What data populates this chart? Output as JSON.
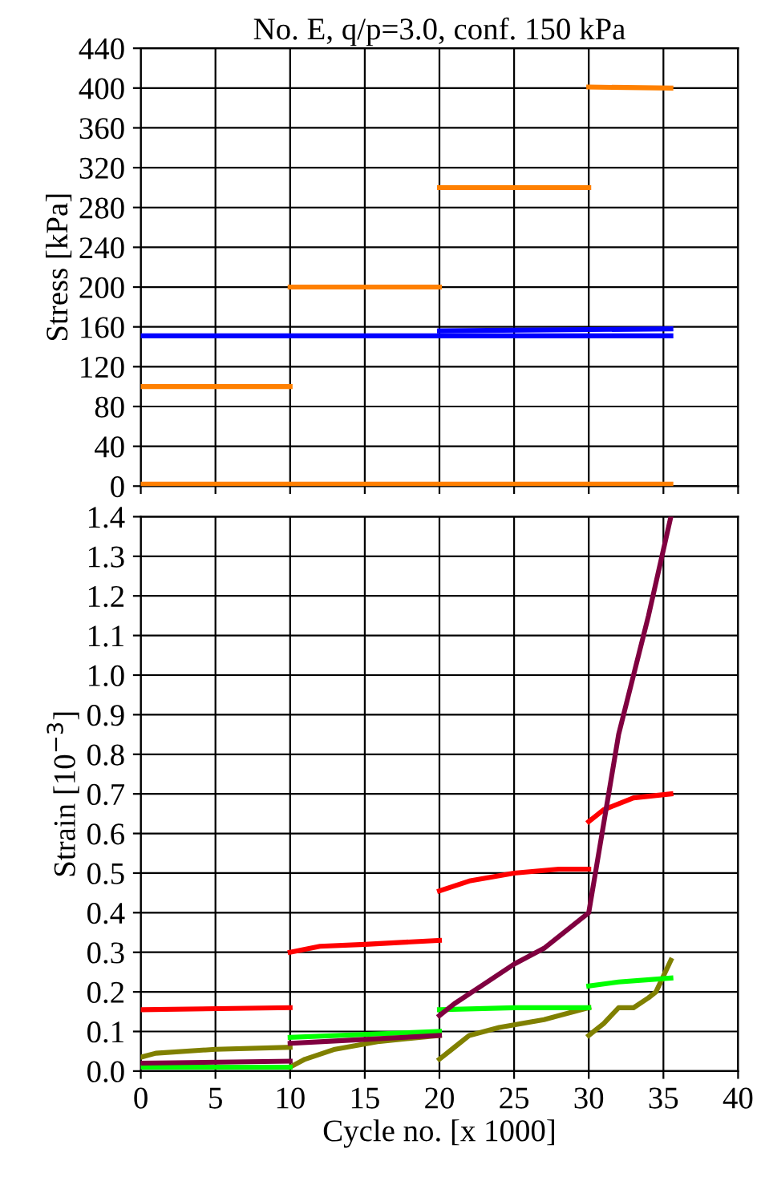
{
  "chart_data": [
    {
      "type": "line",
      "title": "No. E, q/p=3.0, conf. 150 kPa",
      "ylabel": "Stress [kPa]",
      "xlim": [
        0,
        40
      ],
      "xticks": [
        0,
        5,
        10,
        15,
        20,
        25,
        30,
        35,
        40
      ],
      "ylim": [
        0,
        440
      ],
      "yticks": [
        0,
        40,
        80,
        120,
        160,
        200,
        240,
        280,
        320,
        360,
        400,
        440
      ],
      "grid": true,
      "tick_labels": "y",
      "legend": false,
      "marker": "none",
      "line_style": "solid",
      "series": [
        {
          "color": "#ff8000",
          "x": [
            0,
            10
          ],
          "values": [
            100,
            100
          ]
        },
        {
          "color": "#ff8000",
          "x": [
            10,
            20
          ],
          "values": [
            200,
            200
          ]
        },
        {
          "color": "#ff8000",
          "x": [
            20,
            30
          ],
          "values": [
            300,
            300
          ]
        },
        {
          "color": "#ff8000",
          "x": [
            30,
            35.5
          ],
          "values": [
            401,
            400
          ]
        },
        {
          "color": "#ff8000",
          "x": [
            0,
            35.5
          ],
          "values": [
            2,
            2
          ]
        },
        {
          "color": "#0000ff",
          "x": [
            0,
            35.5
          ],
          "values": [
            151,
            151
          ]
        },
        {
          "color": "#0000ff",
          "x": [
            20,
            35.5
          ],
          "values": [
            156,
            158
          ]
        }
      ]
    },
    {
      "type": "line",
      "xlabel": "Cycle no. [x 1000]",
      "ylabel": "Strain [10$^{−3}$]",
      "xlim": [
        0,
        40
      ],
      "xticks": [
        0,
        5,
        10,
        15,
        20,
        25,
        30,
        35,
        40
      ],
      "ylim": [
        0,
        1.4
      ],
      "yticks": [
        {
          "value": 0,
          "label": "0.0"
        },
        {
          "value": 0.1,
          "label": "0.1"
        },
        {
          "value": 0.2,
          "label": "0.2"
        },
        {
          "value": 0.3,
          "label": "0.3"
        },
        {
          "value": 0.4,
          "label": "0.4"
        },
        {
          "value": 0.5,
          "label": "0.5"
        },
        {
          "value": 0.6,
          "label": "0.6"
        },
        {
          "value": 0.7,
          "label": "0.7"
        },
        {
          "value": 0.8,
          "label": "0.8"
        },
        {
          "value": 0.9,
          "label": "0.9"
        },
        {
          "value": 1.0,
          "label": "1.0"
        },
        {
          "value": 1.1,
          "label": "1.1"
        },
        {
          "value": 1.2,
          "label": "1.2"
        },
        {
          "value": 1.3,
          "label": "1.3"
        },
        {
          "value": 1.4,
          "label": "1.4"
        }
      ],
      "grid": true,
      "legend": false,
      "marker": "none",
      "line_style": "solid",
      "series": [
        {
          "color": "#ff0000",
          "x": [
            0,
            10
          ],
          "values": [
            0.155,
            0.16
          ]
        },
        {
          "color": "#ff0000",
          "x": [
            10,
            12,
            15,
            20
          ],
          "values": [
            0.3,
            0.315,
            0.32,
            0.33
          ]
        },
        {
          "color": "#ff0000",
          "x": [
            20,
            22,
            25,
            28,
            30
          ],
          "values": [
            0.455,
            0.48,
            0.5,
            0.51,
            0.51
          ]
        },
        {
          "color": "#ff0000",
          "x": [
            30,
            31,
            33,
            35.5
          ],
          "values": [
            0.63,
            0.66,
            0.69,
            0.7
          ]
        },
        {
          "color": "#808000",
          "x": [
            0,
            1,
            5,
            10
          ],
          "values": [
            0.035,
            0.045,
            0.055,
            0.06
          ]
        },
        {
          "color": "#808000",
          "x": [
            10,
            11,
            13,
            16,
            20
          ],
          "values": [
            0.01,
            0.03,
            0.055,
            0.075,
            0.09
          ]
        },
        {
          "color": "#808000",
          "x": [
            20,
            21,
            22,
            24,
            27,
            30
          ],
          "values": [
            0.03,
            0.06,
            0.09,
            0.11,
            0.13,
            0.16
          ]
        },
        {
          "color": "#808000",
          "x": [
            30,
            31,
            32,
            33,
            34,
            34.5,
            35.5
          ],
          "values": [
            0.09,
            0.12,
            0.16,
            0.16,
            0.185,
            0.2,
            0.28
          ]
        },
        {
          "color": "#00ff00",
          "x": [
            0,
            10
          ],
          "values": [
            0.01,
            0.01
          ]
        },
        {
          "color": "#00ff00",
          "x": [
            10,
            20
          ],
          "values": [
            0.085,
            0.1
          ]
        },
        {
          "color": "#00ff00",
          "x": [
            20,
            25,
            30
          ],
          "values": [
            0.155,
            0.16,
            0.16
          ]
        },
        {
          "color": "#00ff00",
          "x": [
            30,
            32,
            35.5
          ],
          "values": [
            0.215,
            0.225,
            0.235
          ]
        },
        {
          "color": "#800040",
          "x": [
            0,
            10
          ],
          "values": [
            0.02,
            0.025
          ]
        },
        {
          "color": "#800040",
          "x": [
            10,
            15,
            20
          ],
          "values": [
            0.07,
            0.08,
            0.09
          ]
        },
        {
          "color": "#800040",
          "x": [
            20,
            21,
            23,
            25,
            27,
            30,
            32,
            34,
            35.5
          ],
          "values": [
            0.14,
            0.17,
            0.22,
            0.27,
            0.31,
            0.4,
            0.85,
            1.15,
            1.4
          ]
        }
      ]
    }
  ]
}
